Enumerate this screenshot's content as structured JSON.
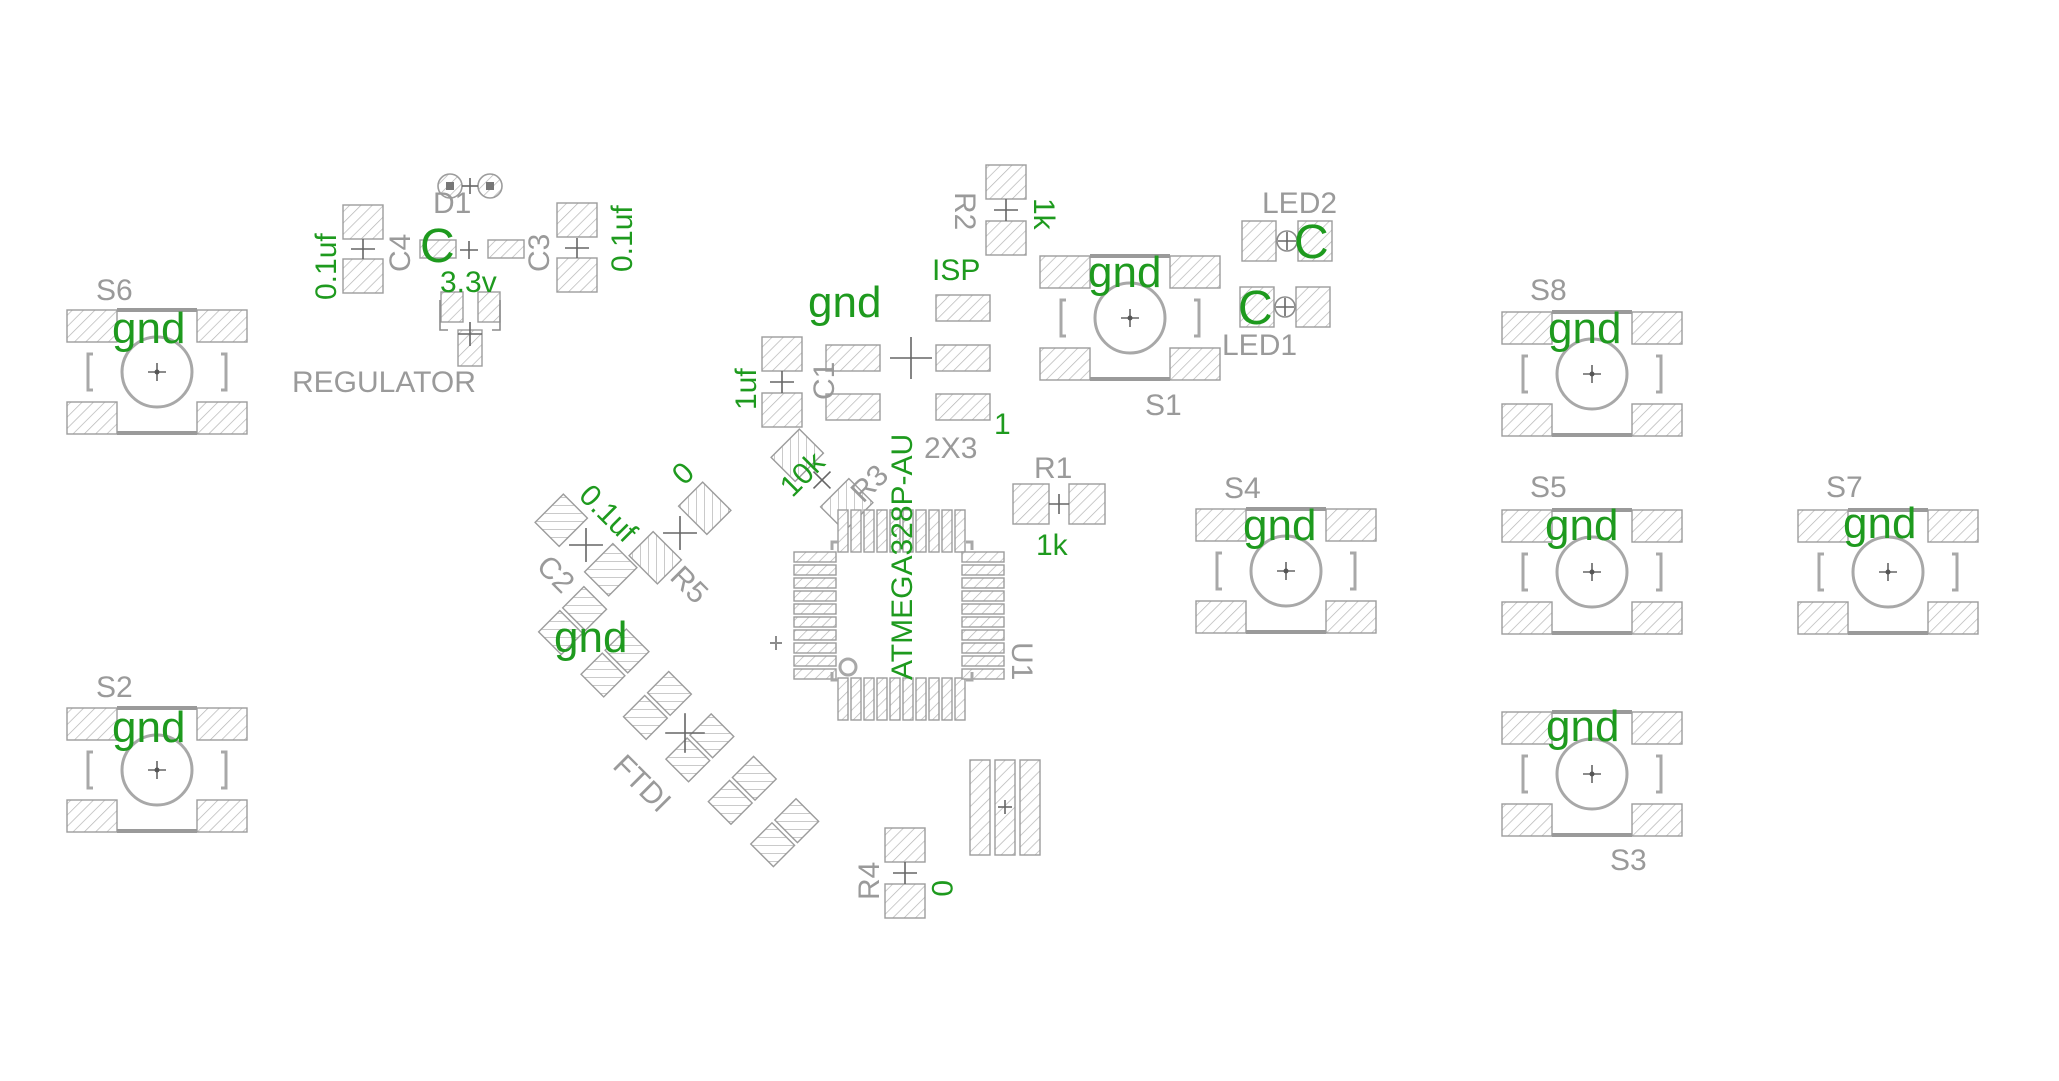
{
  "switches": [
    {
      "ref": "S6",
      "value": "gnd"
    },
    {
      "ref": "S2",
      "value": "gnd"
    },
    {
      "ref": "S1",
      "value": "gnd"
    },
    {
      "ref": "S4",
      "value": "gnd"
    },
    {
      "ref": "S8",
      "value": "gnd"
    },
    {
      "ref": "S5",
      "value": "gnd"
    },
    {
      "ref": "S7",
      "value": "gnd"
    },
    {
      "ref": "S3",
      "value": "gnd"
    }
  ],
  "regulator": {
    "ref": "REGULATOR",
    "value": "3.3v"
  },
  "diode": {
    "ref": "D1"
  },
  "c4": {
    "ref": "C4",
    "value": "0.1uf"
  },
  "c3": {
    "ref": "C3",
    "value": "0.1uf"
  },
  "c1": {
    "ref": "C1",
    "value": "1uf"
  },
  "c2": {
    "ref": "C2",
    "value": "0.1uf"
  },
  "r1": {
    "ref": "R1",
    "value": "1k"
  },
  "r2": {
    "ref": "R2",
    "value": "1k"
  },
  "r3": {
    "ref": "R3",
    "value": "10k"
  },
  "r4": {
    "ref": "R4",
    "value": "0"
  },
  "r5": {
    "ref": "R5",
    "value": "0"
  },
  "isp": {
    "name": "ISP",
    "package": "2X3",
    "pin1": "1",
    "net": "gnd"
  },
  "ftdi": {
    "ref": "FTDI",
    "net": "gnd"
  },
  "mcu": {
    "ref": "U1",
    "value": "ATMEGA328P-AU"
  },
  "led1": {
    "ref": "LED1",
    "mark": "C"
  },
  "led2": {
    "ref": "LED2",
    "mark": "C"
  },
  "regulator_mark": "C",
  "colors": {
    "silkscreen": "#9a9a9a",
    "value_text": "#1e9a1e",
    "pad_outline": "#9c9c9c"
  }
}
